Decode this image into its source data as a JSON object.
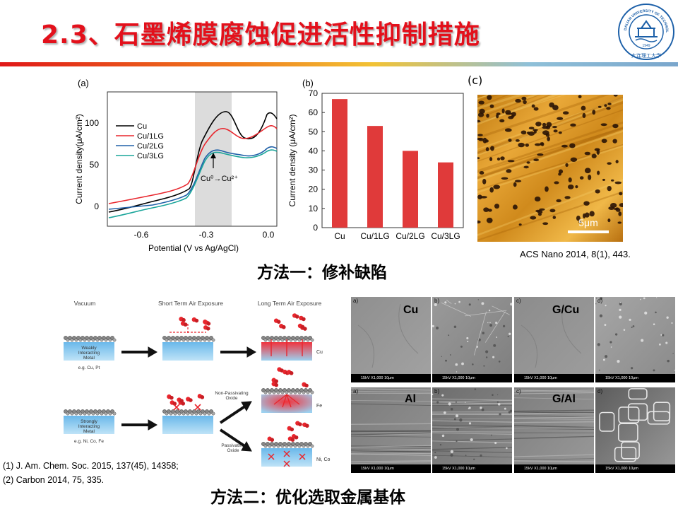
{
  "header": {
    "title": "2.3、石墨烯膜腐蚀促进活性抑制措施",
    "logo_text": "DALIAN UNIVERSITY OF TECHNOLOGY",
    "logo_year": "1949",
    "logo_cn": "大连理工大学"
  },
  "figure_a": {
    "panel_label": "(a)",
    "ylabel": "Current density(μA/cm²)",
    "xlabel": "Potential (V vs Ag/AgCl)",
    "yticks": [
      "0",
      "50",
      "100"
    ],
    "xticks": [
      "-0.6",
      "-0.3",
      "0.0"
    ],
    "legend": [
      "Cu",
      "Cu/1LG",
      "Cu/2LG",
      "Cu/3LG"
    ],
    "annotation": "Cu⁰→Cu²⁺",
    "colors": [
      "#000000",
      "#e8262d",
      "#2060a8",
      "#1aa59a"
    ]
  },
  "chart_data": {
    "type": "bar",
    "panel_label": "(b)",
    "categories": [
      "Cu",
      "Cu/1LG",
      "Cu/2LG",
      "Cu/3LG"
    ],
    "values": [
      67,
      53,
      40,
      34
    ],
    "ylabel": "Current density (μA/cm²)",
    "ylim": [
      0,
      70
    ],
    "yticks": [
      "0",
      "10",
      "20",
      "30",
      "40",
      "50",
      "60",
      "70"
    ],
    "bar_color": "#e03a3a"
  },
  "figure_c": {
    "panel_label": "(c)",
    "scale": "5μm"
  },
  "method1": {
    "text": "方法一：修补缺陷",
    "reference": "ACS Nano 2014, 8(1), 443."
  },
  "schematic": {
    "col_titles": [
      "Vacuum",
      "Short Term Air Exposure",
      "Long Term Air Exposure"
    ],
    "weak_label": "Weakly\nInteracting\nMetal",
    "weak_eg": "e.g. Cu, Pt",
    "strong_label": "Strongly\nInteracting\nMetal",
    "strong_eg": "e.g. Ni, Co, Fe",
    "right_labels": [
      "Cu",
      "Fe",
      "Ni, Co"
    ],
    "non_passivating": "Non-Passivating\nOxide",
    "passivating": "Passivating\nOxide"
  },
  "sem": {
    "labels": [
      "Cu",
      "",
      "G/Cu",
      "",
      "Al",
      "",
      "G/Al",
      ""
    ],
    "letters": [
      "a)",
      "b)",
      "c)",
      "d)",
      "a)",
      "b)",
      "c)",
      "d)"
    ],
    "bar_text": "15kV   X1,000   10μm"
  },
  "references": [
    "(1) J. Am. Chem. Soc. 2015, 137(45), 14358;",
    "(2) Carbon 2014, 75, 335."
  ],
  "method2": {
    "text": "方法二：优化选取金属基体"
  }
}
